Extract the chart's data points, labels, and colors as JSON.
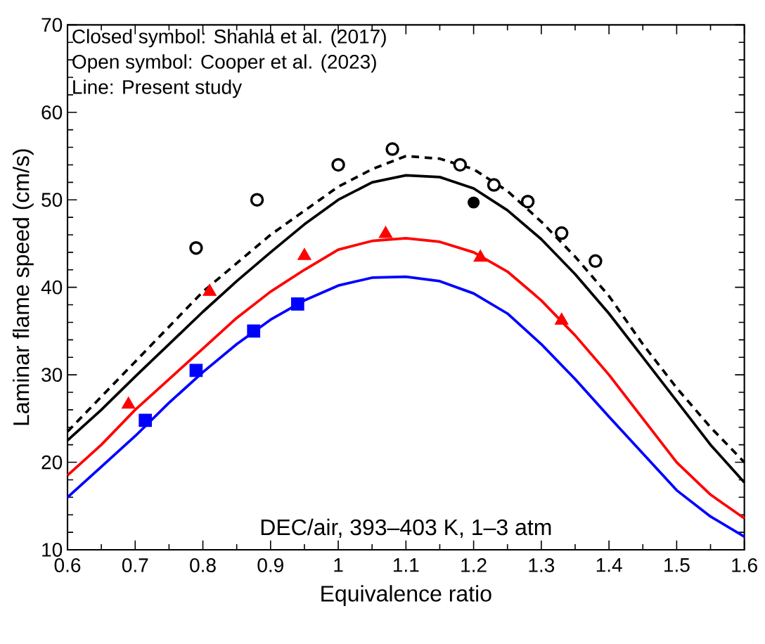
{
  "chart_data": {
    "type": "line",
    "xlabel": "Equivalence ratio",
    "ylabel": "Laminar flame speed (cm/s)",
    "annotations": [
      "Closed symbol: Shahla et al. (2017)",
      "Open symbol: Cooper et al. (2023)",
      "Line: Present study",
      "DEC/air, 393–403 K, 1–3 atm"
    ],
    "xlim": [
      0.6,
      1.6
    ],
    "ylim": [
      10,
      70
    ],
    "xticks": [
      0.6,
      0.7,
      0.8,
      0.9,
      1,
      1.1,
      1.2,
      1.3,
      1.4,
      1.5,
      1.6
    ],
    "yticks": [
      10,
      20,
      30,
      40,
      50,
      60,
      70
    ],
    "series": [
      {
        "color": "#000000",
        "line_style": "dashed",
        "marker": "none",
        "x": [
          0.6,
          0.7,
          0.8,
          0.9,
          1.0,
          1.05,
          1.1,
          1.15,
          1.2,
          1.25,
          1.3,
          1.35,
          1.4,
          1.45,
          1.5,
          1.55,
          1.6
        ],
        "values": [
          23.5,
          31.5,
          39.5,
          46,
          51.5,
          53.5,
          55,
          54.7,
          53.5,
          51,
          47.5,
          43.5,
          39,
          33.5,
          28.5,
          24,
          20
        ]
      },
      {
        "color": "#000000",
        "line_style": "solid",
        "marker": "none",
        "x": [
          0.6,
          0.65,
          0.7,
          0.75,
          0.8,
          0.85,
          0.9,
          0.95,
          1.0,
          1.05,
          1.1,
          1.15,
          1.2,
          1.25,
          1.3,
          1.35,
          1.4,
          1.45,
          1.5,
          1.55,
          1.6
        ],
        "values": [
          22.5,
          26,
          29.8,
          33.5,
          37.2,
          40.7,
          44,
          47.2,
          50,
          52,
          52.8,
          52.6,
          51.3,
          48.8,
          45.5,
          41.5,
          37,
          32,
          27,
          22,
          17.7
        ]
      },
      {
        "color": "#ff0000",
        "line_style": "solid",
        "marker": "none",
        "x": [
          0.6,
          0.65,
          0.7,
          0.75,
          0.8,
          0.85,
          0.9,
          0.95,
          1.0,
          1.05,
          1.1,
          1.15,
          1.2,
          1.25,
          1.3,
          1.35,
          1.4,
          1.45,
          1.5,
          1.55,
          1.6
        ],
        "values": [
          18.5,
          22,
          26,
          29.5,
          33,
          36.5,
          39.5,
          42,
          44.3,
          45.3,
          45.6,
          45.2,
          44,
          41.8,
          38.5,
          34.5,
          30,
          25,
          20,
          16.3,
          13.6
        ]
      },
      {
        "color": "#0000ff",
        "line_style": "solid",
        "marker": "none",
        "x": [
          0.6,
          0.65,
          0.7,
          0.75,
          0.8,
          0.85,
          0.9,
          0.95,
          1.0,
          1.05,
          1.1,
          1.15,
          1.2,
          1.25,
          1.3,
          1.35,
          1.4,
          1.45,
          1.5,
          1.55,
          1.6
        ],
        "values": [
          16,
          19.5,
          23,
          26.8,
          30.3,
          33.5,
          36.3,
          38.5,
          40.2,
          41.1,
          41.2,
          40.7,
          39.3,
          37,
          33.5,
          29.5,
          25.2,
          21,
          16.8,
          13.8,
          11.5
        ]
      },
      {
        "type": "scatter",
        "color": "#000000",
        "marker": "circle",
        "x": [
          0.79,
          0.88,
          1.0,
          1.08,
          1.18,
          1.23,
          1.28,
          1.33,
          1.38
        ],
        "values": [
          44.5,
          50,
          54,
          55.8,
          54,
          51.7,
          49.8,
          46.2,
          43
        ]
      },
      {
        "type": "scatter",
        "color": "#000000",
        "marker": "circle",
        "x": [
          1.2
        ],
        "values": [
          49.7
        ]
      },
      {
        "type": "scatter",
        "color": "#ff0000",
        "marker": "triangle",
        "x": [
          0.69,
          0.81,
          0.95,
          1.07,
          1.21,
          1.33
        ],
        "values": [
          26.6,
          39.5,
          43.6,
          46.1,
          43.4,
          36.2
        ]
      },
      {
        "type": "scatter",
        "color": "#0000ff",
        "marker": "square",
        "x": [
          0.715,
          0.79,
          0.875,
          0.94
        ],
        "values": [
          24.8,
          30.5,
          35,
          38.1
        ]
      }
    ]
  }
}
